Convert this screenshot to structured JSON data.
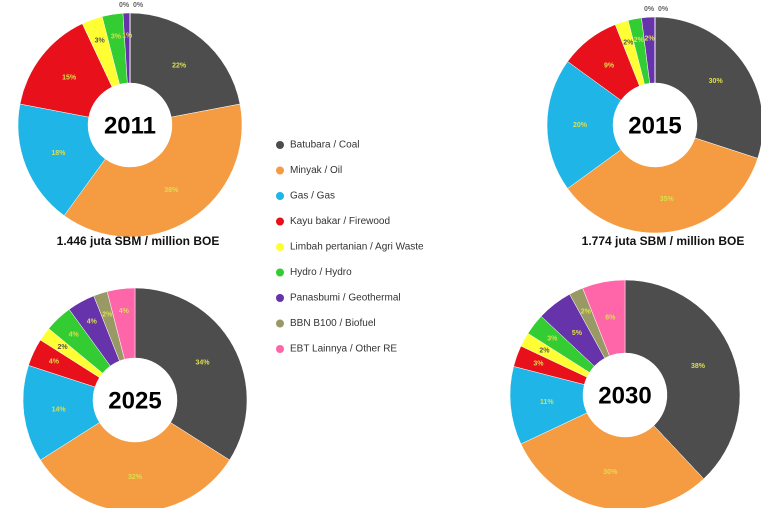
{
  "legend": {
    "categories": [
      "Batubara / Coal",
      "Minyak / Oil",
      "Gas / Gas",
      "Kayu bakar / Firewood",
      "Limbah pertanian / Agri Waste",
      "Hydro / Hydro",
      "Panasbumi / Geothermal",
      "BBN B100 / Biofuel",
      "EBT Lainnya / Other RE"
    ],
    "colors": [
      "#4d4d4d",
      "#f59b42",
      "#1fb5e6",
      "#e8101a",
      "#ffff33",
      "#33cc33",
      "#6633aa",
      "#999966",
      "#ff66aa"
    ]
  },
  "chart_data": [
    {
      "type": "pie",
      "title": "2011",
      "subtitle": "1.446 juta SBM / million BOE",
      "values": [
        22,
        38,
        18,
        15,
        3,
        3,
        1,
        0,
        0
      ],
      "value_labels": [
        "22%",
        "38%",
        "18%",
        "15%",
        "3%",
        "3%",
        "1%",
        "0%",
        "0%"
      ]
    },
    {
      "type": "pie",
      "title": "2015",
      "subtitle": "1.774 juta SBM / million BOE",
      "values": [
        30,
        35,
        20,
        9,
        2,
        2,
        2,
        0,
        0
      ],
      "value_labels": [
        "30%",
        "35%",
        "20%",
        "9%",
        "2%",
        "2%",
        "2%",
        "0%",
        "0%"
      ]
    },
    {
      "type": "pie",
      "title": "2025",
      "values": [
        34,
        32,
        14,
        4,
        2,
        4,
        4,
        2,
        4
      ],
      "value_labels": [
        "34%",
        "32%",
        "14%",
        "4%",
        "2%",
        "4%",
        "4%",
        "2%",
        "4%"
      ]
    },
    {
      "type": "pie",
      "title": "2030",
      "values": [
        38,
        30,
        11,
        3,
        2,
        3,
        5,
        2,
        6
      ],
      "value_labels": [
        "38%",
        "30%",
        "11%",
        "3%",
        "2%",
        "3%",
        "5%",
        "2%",
        "6%"
      ]
    }
  ]
}
